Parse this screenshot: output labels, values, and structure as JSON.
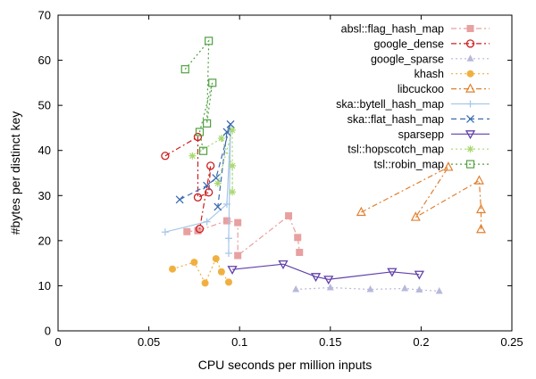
{
  "chart_data": {
    "type": "scatter",
    "xlabel": "CPU seconds per million inputs",
    "ylabel": "#bytes per distinct key",
    "xlim": [
      0,
      0.25
    ],
    "ylim": [
      0,
      70
    ],
    "xticks": [
      0,
      0.05,
      0.1,
      0.15,
      0.2,
      0.25
    ],
    "xtick_labels": [
      "0",
      "0.05",
      "0.1",
      "0.15",
      "0.2",
      "0.25"
    ],
    "yticks": [
      0,
      10,
      20,
      30,
      40,
      50,
      60,
      70
    ],
    "ytick_labels": [
      "0",
      "10",
      "20",
      "30",
      "40",
      "50",
      "60",
      "70"
    ],
    "grid": false,
    "legend_position": "top-right",
    "series": [
      {
        "name": "absl::flag_hash_map",
        "color": "#e8a0a0",
        "marker": "square-filled",
        "dash": "6,3,2,3",
        "points": [
          [
            0.071,
            22.0
          ],
          [
            0.077,
            22.2
          ],
          [
            0.093,
            24.4
          ],
          [
            0.099,
            24.0
          ],
          [
            0.099,
            16.7
          ],
          [
            0.127,
            25.5
          ],
          [
            0.132,
            20.7
          ],
          [
            0.133,
            17.4
          ]
        ]
      },
      {
        "name": "google_dense",
        "color": "#cc1f1f",
        "marker": "circle-open",
        "dash": "6,3,2,3",
        "points": [
          [
            0.059,
            38.8
          ],
          [
            0.077,
            43.0
          ],
          [
            0.077,
            29.6
          ],
          [
            0.083,
            30.7
          ],
          [
            0.084,
            36.6
          ],
          [
            0.078,
            22.6
          ]
        ]
      },
      {
        "name": "google_sparse",
        "color": "#b8b8dc",
        "marker": "triangle-up-filled",
        "dash": "2,3",
        "points": [
          [
            0.131,
            9.2
          ],
          [
            0.15,
            9.6
          ],
          [
            0.172,
            9.2
          ],
          [
            0.191,
            9.4
          ],
          [
            0.199,
            9.1
          ],
          [
            0.21,
            8.8
          ]
        ]
      },
      {
        "name": "khash",
        "color": "#f0b040",
        "marker": "circle-filled",
        "dash": "2,3",
        "points": [
          [
            0.063,
            13.7
          ],
          [
            0.075,
            15.2
          ],
          [
            0.081,
            10.6
          ],
          [
            0.087,
            16.0
          ],
          [
            0.09,
            13.1
          ],
          [
            0.094,
            10.8
          ]
        ]
      },
      {
        "name": "libcuckoo",
        "color": "#e08030",
        "marker": "triangle-up-open",
        "dash": "6,3,2,3",
        "points": [
          [
            0.167,
            26.3
          ],
          [
            0.215,
            36.3
          ],
          [
            0.197,
            25.2
          ],
          [
            0.232,
            33.3
          ],
          [
            0.233,
            26.9
          ],
          [
            0.233,
            22.5
          ]
        ]
      },
      {
        "name": "ska::bytell_hash_map",
        "color": "#a8c8e8",
        "marker": "plus",
        "dash": "",
        "points": [
          [
            0.059,
            21.9
          ],
          [
            0.082,
            24.2
          ],
          [
            0.093,
            28.1
          ],
          [
            0.095,
            44.6
          ],
          [
            0.094,
            20.5
          ],
          [
            0.094,
            17.2
          ]
        ]
      },
      {
        "name": "ska::flat_hash_map",
        "color": "#3a6ab0",
        "marker": "cross",
        "dash": "6,4",
        "points": [
          [
            0.067,
            29.1
          ],
          [
            0.082,
            32.2
          ],
          [
            0.087,
            33.9
          ],
          [
            0.095,
            45.8
          ],
          [
            0.093,
            44.1
          ],
          [
            0.088,
            27.5
          ]
        ]
      },
      {
        "name": "sparsepp",
        "color": "#6040a8",
        "marker": "triangle-down-open",
        "dash": "",
        "points": [
          [
            0.096,
            13.6
          ],
          [
            0.124,
            14.8
          ],
          [
            0.142,
            12.0
          ],
          [
            0.149,
            11.4
          ],
          [
            0.184,
            13.1
          ],
          [
            0.199,
            12.5
          ]
        ]
      },
      {
        "name": "tsl::hopscotch_map",
        "color": "#a8d870",
        "marker": "star",
        "dash": "2,3",
        "points": [
          [
            0.074,
            38.8
          ],
          [
            0.09,
            42.7
          ],
          [
            0.096,
            36.6
          ],
          [
            0.096,
            30.8
          ],
          [
            0.096,
            44.5
          ],
          [
            0.088,
            32.7
          ]
        ]
      },
      {
        "name": "tsl::robin_map",
        "color": "#50a040",
        "marker": "square-open",
        "dash": "2,3",
        "points": [
          [
            0.07,
            58.0
          ],
          [
            0.083,
            64.3
          ],
          [
            0.082,
            46.0
          ],
          [
            0.085,
            55.0
          ],
          [
            0.078,
            44.1
          ],
          [
            0.08,
            39.9
          ]
        ]
      }
    ]
  }
}
